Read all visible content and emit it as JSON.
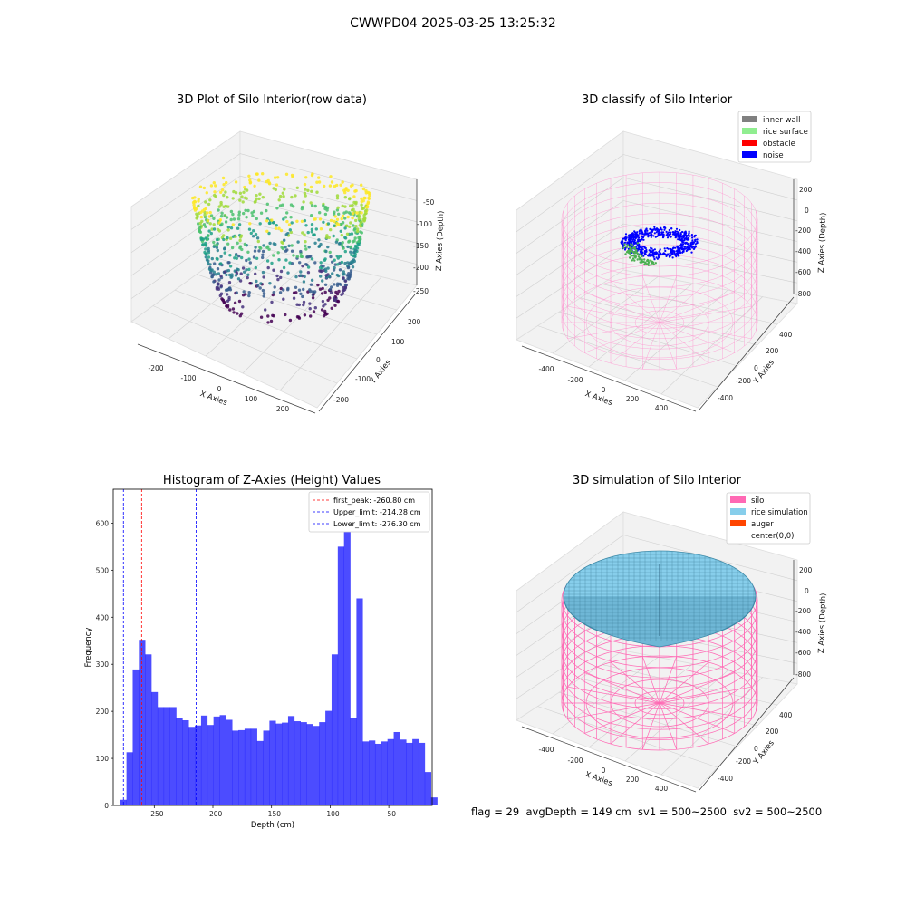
{
  "figure": {
    "suptitle": "CWWPD04 2025-03-25 13:25:32",
    "footer": "flag = 29  avgDepth = 149 cm  sv1 = 500~2500  sv2 = 500~2500"
  },
  "panels": {
    "raw": {
      "title": "3D Plot of Silo Interior(row data)",
      "xlabel": "X Axies",
      "ylabel": "Y Axies",
      "zlabel": "Z Axies (Depth)",
      "xticks": [
        "-200",
        "-100",
        "0",
        "100",
        "200"
      ],
      "yticks": [
        "200",
        "100",
        "0",
        "-100",
        "-200"
      ],
      "zticks": [
        "-50",
        "-100",
        "-150",
        "-200",
        "-250"
      ]
    },
    "classify": {
      "title": "3D classify of Silo Interior",
      "xlabel": "X Axies",
      "ylabel": "Y Axies",
      "zlabel": "Z Axies (Depth)",
      "xticks": [
        "-400",
        "-200",
        "0",
        "200",
        "400"
      ],
      "yticks": [
        "400",
        "200",
        "0",
        "-200",
        "-400"
      ],
      "zticks": [
        "200",
        "0",
        "-200",
        "-400",
        "-600",
        "-800"
      ],
      "legend": [
        {
          "label": "inner wall",
          "color": "#808080"
        },
        {
          "label": "rice surface",
          "color": "#90ee90"
        },
        {
          "label": "obstacle",
          "color": "#ff0000"
        },
        {
          "label": "noise",
          "color": "#0000ff"
        }
      ]
    },
    "simulation": {
      "title": "3D simulation of Silo Interior",
      "xlabel": "X Axies",
      "ylabel": "Y Axies",
      "zlabel": "Z Axies (Depth)",
      "xticks": [
        "-400",
        "-200",
        "0",
        "200",
        "400"
      ],
      "yticks": [
        "400",
        "200",
        "0",
        "-200",
        "-400"
      ],
      "zticks": [
        "200",
        "0",
        "-200",
        "-400",
        "-600",
        "-800"
      ],
      "legend": [
        {
          "label": "silo",
          "color": "#ff69b4"
        },
        {
          "label": "rice simulation",
          "color": "#87ceeb"
        },
        {
          "label": "auger",
          "color": "#ff4500"
        },
        {
          "label": "center(0,0)",
          "color": "none"
        }
      ]
    }
  },
  "chart_data": {
    "type": "bar",
    "title": "Histogram of Z-Axies (Height) Values",
    "xlabel": "Depth (cm)",
    "ylabel": "Frequency",
    "xlim": [
      -285,
      -13
    ],
    "ylim": [
      0,
      672
    ],
    "xticks": [
      -250,
      -200,
      -150,
      -100,
      -50
    ],
    "yticks": [
      0,
      100,
      200,
      300,
      400,
      500,
      600
    ],
    "bar_color": "#0000ff",
    "bin_start": -279,
    "bin_width": 5.3,
    "values": [
      12,
      113,
      289,
      352,
      321,
      241,
      209,
      209,
      209,
      186,
      181,
      167,
      170,
      191,
      171,
      189,
      192,
      182,
      159,
      160,
      163,
      163,
      137,
      159,
      180,
      174,
      176,
      190,
      179,
      177,
      173,
      169,
      177,
      201,
      321,
      550,
      640,
      186,
      440,
      136,
      138,
      131,
      136,
      141,
      156,
      140,
      133,
      141,
      133,
      71,
      17
    ],
    "vlines": [
      {
        "label": "first_peak: -260.80 cm",
        "x": -260.8,
        "color": "#ff0000"
      },
      {
        "label": "Upper_limit: -214.28 cm",
        "x": -214.28,
        "color": "#0000ff"
      },
      {
        "label": "Lower_limit: -276.30 cm",
        "x": -276.3,
        "color": "#0000ff"
      }
    ],
    "legend_loc": "upper right"
  }
}
